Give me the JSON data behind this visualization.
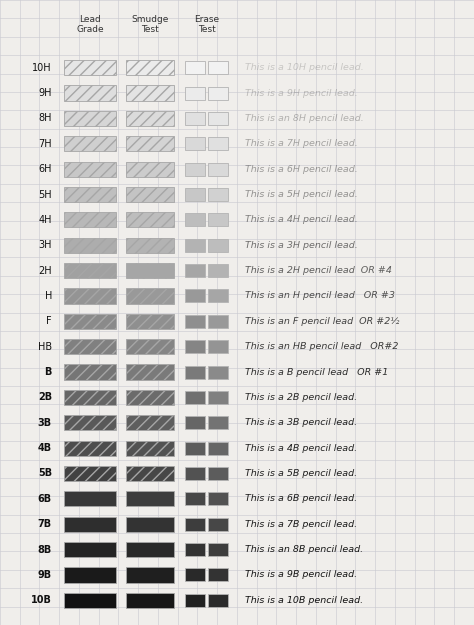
{
  "grades": [
    "10H",
    "9H",
    "8H",
    "7H",
    "6H",
    "5H",
    "4H",
    "3H",
    "2H",
    "H",
    "F",
    "HB",
    "B",
    "2B",
    "3B",
    "4B",
    "5B",
    "6B",
    "7B",
    "8B",
    "9B",
    "10B"
  ],
  "lead_gray": [
    0.9,
    0.87,
    0.84,
    0.81,
    0.78,
    0.75,
    0.72,
    0.68,
    0.63,
    0.58,
    0.54,
    0.5,
    0.46,
    0.4,
    0.35,
    0.3,
    0.26,
    0.22,
    0.18,
    0.14,
    0.1,
    0.07
  ],
  "smudge_gray": [
    0.92,
    0.89,
    0.86,
    0.83,
    0.8,
    0.77,
    0.74,
    0.7,
    0.65,
    0.6,
    0.56,
    0.52,
    0.48,
    0.42,
    0.37,
    0.32,
    0.28,
    0.24,
    0.2,
    0.16,
    0.12,
    0.09
  ],
  "erase1_gray": [
    0.95,
    0.92,
    0.88,
    0.85,
    0.82,
    0.78,
    0.74,
    0.7,
    0.65,
    0.6,
    0.56,
    0.52,
    0.48,
    0.44,
    0.4,
    0.36,
    0.32,
    0.28,
    0.24,
    0.2,
    0.16,
    0.13
  ],
  "erase2_gray": [
    0.95,
    0.93,
    0.9,
    0.88,
    0.85,
    0.82,
    0.78,
    0.74,
    0.7,
    0.65,
    0.6,
    0.58,
    0.54,
    0.5,
    0.45,
    0.4,
    0.36,
    0.32,
    0.28,
    0.24,
    0.2,
    0.17
  ],
  "annotations": [
    "This is a 10H pencil lead.",
    "This is a 9H pencil lead.",
    "This is an 8H pencil lead.",
    "This is a 7H pencil lead.",
    "This is a 6H pencil lead.",
    "This is a 5H pencil lead.",
    "This is a 4H pencil lead.",
    "This is a 3H pencil lead.",
    "This is a 2H pencil lead  OR #4",
    "This is an H pencil lead   OR #3",
    "This is an F pencil lead  OR #2½",
    "This is an HB pencil lead   OR#2",
    "This is a B pencil lead   OR #1",
    "This is a 2B pencil lead.",
    "This is a 3B pencil lead.",
    "This is a 4B pencil lead.",
    "This is a 5B pencil lead.",
    "This is a 6B pencil lead.",
    "This is a 7B pencil lead.",
    "This is an 8B pencil lead.",
    "This is a 9B pencil lead.",
    "This is a 10B pencil lead."
  ],
  "annot_alpha": [
    0.18,
    0.22,
    0.28,
    0.34,
    0.38,
    0.42,
    0.5,
    0.58,
    0.65,
    0.72,
    0.78,
    0.82,
    0.88,
    0.9,
    0.92,
    0.93,
    0.94,
    0.95,
    0.96,
    0.97,
    0.98,
    1.0
  ],
  "bg_color": "#f0eeeb",
  "grid_color": "#c8c8d0",
  "header_fontsize": 6.5,
  "grade_fontsize": 7.0,
  "annot_fontsize": 6.8
}
